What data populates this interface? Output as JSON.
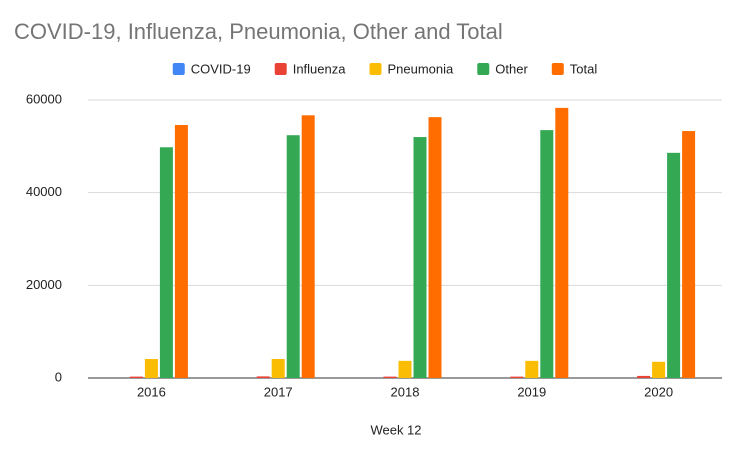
{
  "chart_data": {
    "type": "bar",
    "title": "COVID-19, Influenza, Pneumonia, Other and Total",
    "x_label": "Week 12",
    "categories": [
      "2016",
      "2017",
      "2018",
      "2019",
      "2020"
    ],
    "series": [
      {
        "name": "COVID-19",
        "color": "#4285f4",
        "values": [
          0,
          0,
          0,
          0,
          0
        ]
      },
      {
        "name": "Influenza",
        "color": "#ea4335",
        "values": [
          300,
          350,
          300,
          300,
          450
        ]
      },
      {
        "name": "Pneumonia",
        "color": "#fbbc04",
        "values": [
          4100,
          4100,
          3700,
          3700,
          3500
        ]
      },
      {
        "name": "Other",
        "color": "#34a853",
        "values": [
          49800,
          52400,
          52000,
          53500,
          48600
        ]
      },
      {
        "name": "Total",
        "color": "#ff6d01",
        "values": [
          54600,
          56700,
          56300,
          58300,
          53300
        ]
      }
    ],
    "ylim": [
      0,
      60000
    ],
    "yticks": [
      0,
      20000,
      40000,
      60000
    ],
    "grid": true,
    "legend": "top"
  }
}
